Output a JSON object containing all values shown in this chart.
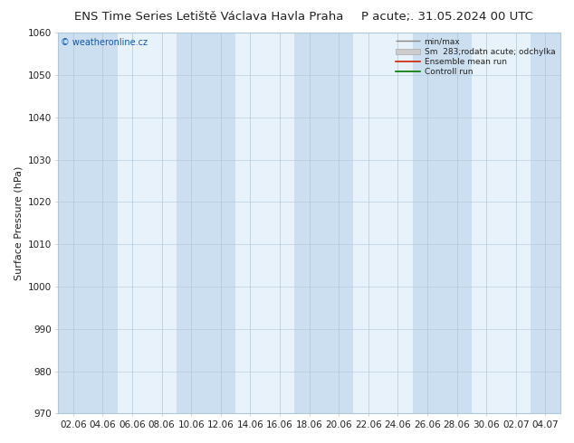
{
  "title_left": "ENS Time Series Letiště Václava Havla Praha",
  "title_right": "P acute;. 31.05.2024 00 UTC",
  "ylabel": "Surface Pressure (hPa)",
  "watermark": "© weatheronline.cz",
  "ylim": [
    970,
    1060
  ],
  "yticks": [
    970,
    980,
    990,
    1000,
    1010,
    1020,
    1030,
    1040,
    1050,
    1060
  ],
  "xtick_labels": [
    "02.06",
    "04.06",
    "06.06",
    "08.06",
    "10.06",
    "12.06",
    "14.06",
    "16.06",
    "18.06",
    "20.06",
    "22.06",
    "24.06",
    "26.06",
    "28.06",
    "30.06",
    "02.07",
    "04.07"
  ],
  "n_xticks": 17,
  "plot_bg_color": "#e8f2fa",
  "stripe_color": "#ccdff0",
  "vline_color": "#b0c8d8",
  "hline_color": "#b0c8d8",
  "legend_min_max_color": "#888888",
  "legend_std_color": "#cccccc",
  "legend_mean_color": "#cc2200",
  "legend_control_color": "#007700",
  "font_color": "#222222",
  "watermark_color": "#1155aa",
  "title_fontsize": 9.5,
  "tick_fontsize": 7.5,
  "ylabel_fontsize": 8,
  "stripe_indices": [
    0,
    1,
    4,
    5,
    8,
    9,
    12,
    13,
    16
  ],
  "figsize": [
    6.34,
    4.9
  ],
  "dpi": 100
}
